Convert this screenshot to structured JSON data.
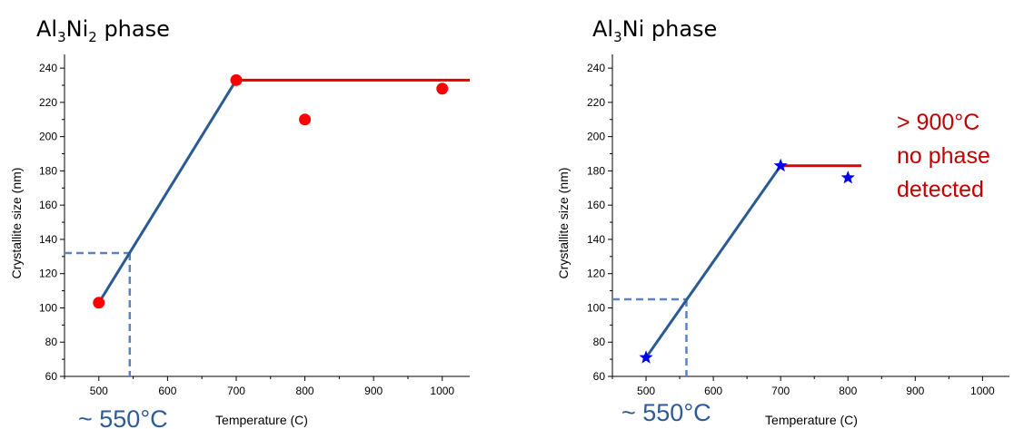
{
  "colors": {
    "trend_blue": "#2a5a94",
    "dashed_blue": "#5b83c2",
    "plateau_red": "#e00000",
    "marker_red": "#ff0000",
    "marker_blue": "#0000ee",
    "annotation_red": "#c00000",
    "annotation_blue": "#2e5b96"
  },
  "chart_data": [
    {
      "type": "scatter",
      "title": {
        "base": "Al",
        "sub1": "3",
        "mid": "Ni",
        "sub2": "2",
        "rest": " phase"
      },
      "xlabel": "Temperature (C)",
      "ylabel": "Crystallite size (nm)",
      "xlim": [
        450,
        1040
      ],
      "ylim": [
        60,
        248
      ],
      "x_ticks": [
        500,
        600,
        700,
        800,
        900,
        1000
      ],
      "y_ticks": [
        60,
        80,
        100,
        120,
        140,
        160,
        180,
        200,
        220,
        240
      ],
      "marker": "circle",
      "marker_color": "#ff0000",
      "points": [
        {
          "x": 500,
          "y": 103
        },
        {
          "x": 700,
          "y": 233
        },
        {
          "x": 800,
          "y": 210
        },
        {
          "x": 1000,
          "y": 228
        }
      ],
      "trend_line": [
        {
          "x": 500,
          "y": 103
        },
        {
          "x": 700,
          "y": 233
        }
      ],
      "plateau_line": [
        {
          "x": 700,
          "y": 233
        },
        {
          "x": 1040,
          "y": 233
        }
      ],
      "dashed_guide": {
        "x": 545,
        "y": 132
      },
      "annotations": {
        "temperature": "~ 550°C",
        "detected": ""
      }
    },
    {
      "type": "scatter",
      "title": {
        "base": "Al",
        "sub1": "3",
        "mid": "Ni",
        "sub2": "",
        "rest": " phase"
      },
      "xlabel": "Temperature (C)",
      "ylabel": "Crystallite size (nm)",
      "xlim": [
        450,
        1040
      ],
      "ylim": [
        60,
        248
      ],
      "x_ticks": [
        500,
        600,
        700,
        800,
        900,
        1000
      ],
      "y_ticks": [
        60,
        80,
        100,
        120,
        140,
        160,
        180,
        200,
        220,
        240
      ],
      "marker": "star",
      "marker_color": "#0000ee",
      "points": [
        {
          "x": 500,
          "y": 71
        },
        {
          "x": 700,
          "y": 183
        },
        {
          "x": 800,
          "y": 176
        }
      ],
      "trend_line": [
        {
          "x": 500,
          "y": 71
        },
        {
          "x": 700,
          "y": 183
        }
      ],
      "plateau_line": [
        {
          "x": 700,
          "y": 183
        },
        {
          "x": 820,
          "y": 183
        }
      ],
      "dashed_guide": {
        "x": 560,
        "y": 105
      },
      "annotations": {
        "temperature": "~ 550°C",
        "detected_lines": [
          "> 900°C",
          "no phase",
          "detected"
        ]
      }
    }
  ]
}
